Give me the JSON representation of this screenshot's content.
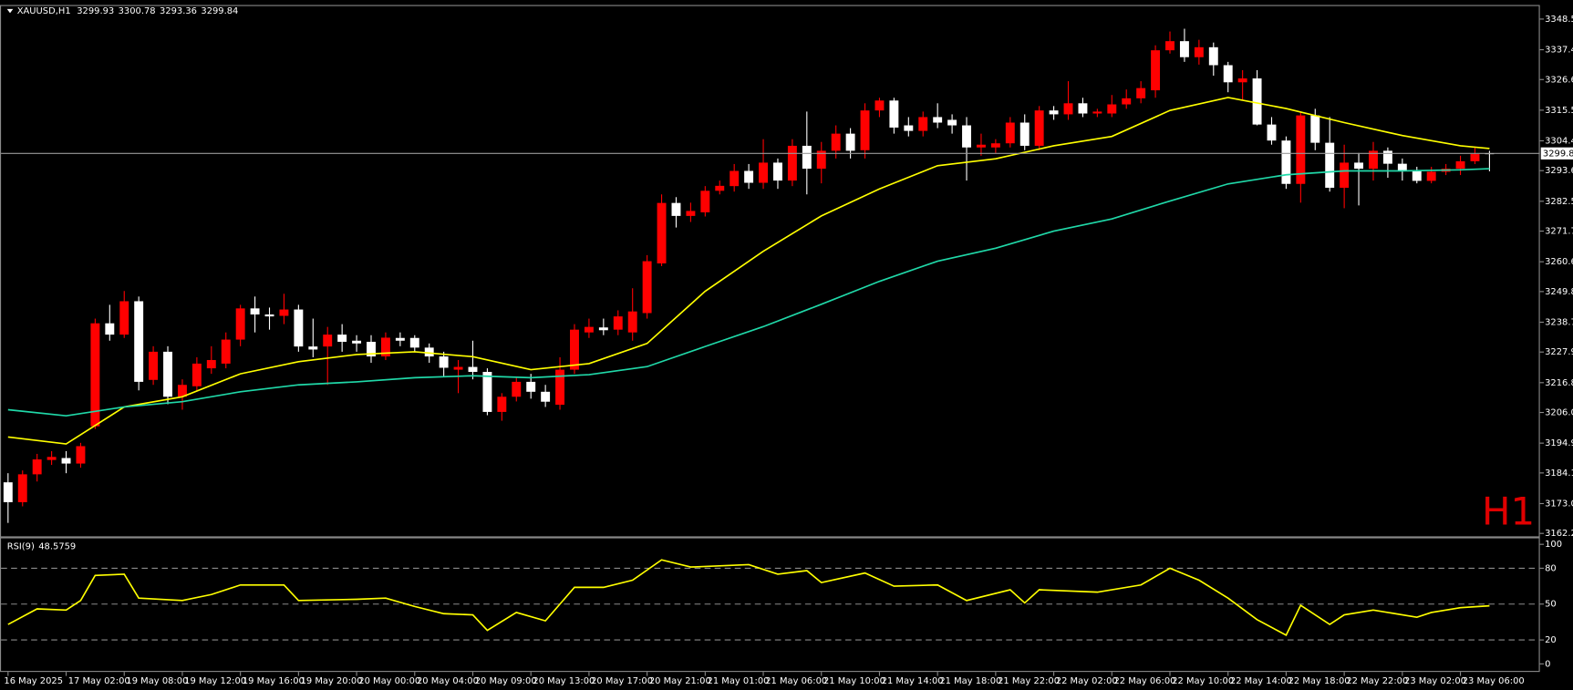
{
  "chart_data": [
    {
      "type": "candlestick",
      "title": "XAUUSD,H1",
      "timeframe_watermark": "H1",
      "up_color": "#ff0000",
      "down_color": "#ffffff",
      "price_line_color": "#9a9a9a",
      "categories": [
        "16 May 2025",
        null,
        null,
        null,
        "17 May 02:00",
        null,
        null,
        null,
        "19 May 08:00",
        null,
        null,
        null,
        "19 May 12:00",
        null,
        null,
        null,
        "19 May 16:00",
        null,
        null,
        null,
        "19 May 20:00",
        null,
        null,
        null,
        "20 May 00:00",
        null,
        null,
        null,
        "20 May 04:00",
        null,
        null,
        null,
        "20 May 09:00",
        null,
        null,
        null,
        "20 May 13:00",
        null,
        null,
        null,
        "20 May 17:00",
        null,
        null,
        null,
        "20 May 21:00",
        null,
        null,
        null,
        "21 May 01:00",
        null,
        null,
        null,
        "21 May 06:00",
        null,
        null,
        null,
        "21 May 10:00",
        null,
        null,
        null,
        "21 May 14:00",
        null,
        null,
        null,
        "21 May 18:00",
        null,
        null,
        null,
        "21 May 22:00",
        null,
        null,
        null,
        "22 May 02:00",
        null,
        null,
        null,
        "22 May 06:00",
        null,
        null,
        null,
        "22 May 10:00",
        null,
        null,
        null,
        "22 May 14:00",
        null,
        null,
        null,
        "22 May 18:00",
        null,
        null,
        null,
        "22 May 22:00",
        null,
        null,
        null,
        "23 May 02:00",
        null,
        null,
        null,
        "23 May 06:00",
        null,
        null
      ],
      "open": [
        3180.7,
        3173.5,
        3183.6,
        3188.8,
        3189.5,
        3187.5,
        3201,
        3238.3,
        3234.2,
        3246.3,
        3217.8,
        3228,
        3211.7,
        3215.5,
        3222,
        3223.7,
        3232.4,
        3243.7,
        3241.5,
        3241,
        3243.3,
        3229.9,
        3229.9,
        3234.2,
        3232,
        3231.6,
        3226.3,
        3233,
        3233,
        3229.5,
        3226.3,
        3221.5,
        3222.5,
        3220.7,
        3206.2,
        3211.7,
        3217.1,
        3213.5,
        3208.8,
        3221.5,
        3235,
        3236.8,
        3236,
        3235,
        3242,
        3260,
        3281.9,
        3277.2,
        3278.5,
        3286.3,
        3288,
        3293.5,
        3289.2,
        3296.5,
        3290,
        3302.6,
        3294.3,
        3300.8,
        3307,
        3301,
        3315.4,
        3319,
        3310,
        3308,
        3313,
        3312,
        3310,
        3302,
        3302,
        3303.5,
        3311,
        3302.6,
        3315.4,
        3314,
        3318,
        3314.3,
        3314.3,
        3317.6,
        3319.8,
        3322.7,
        3337.2,
        3340.5,
        3334.7,
        3338.3,
        3331.8,
        3325.6,
        3327,
        3310.3,
        3304.5,
        3288.8,
        3313.6,
        3303.7,
        3287.4,
        3296.5,
        3294.3,
        3300.8,
        3296.1,
        3293.5,
        3289.9,
        3293.2,
        3294.3,
        3297,
        3299.93
      ],
      "high": [
        3184,
        3185,
        3191,
        3192,
        3192,
        3195,
        3240,
        3245,
        3250,
        3248,
        3230,
        3230,
        3218,
        3226,
        3230,
        3235,
        3245,
        3248,
        3244,
        3249,
        3245,
        3240,
        3237,
        3238,
        3234,
        3234,
        3235,
        3235,
        3234,
        3231,
        3228,
        3225,
        3232,
        3222,
        3213,
        3219,
        3220,
        3216,
        3226,
        3238,
        3240,
        3240,
        3243,
        3251,
        3263,
        3285,
        3284,
        3282,
        3288,
        3290,
        3296,
        3296,
        3305,
        3298,
        3305,
        3315,
        3304,
        3310,
        3309,
        3318,
        3320,
        3320,
        3313,
        3315,
        3318,
        3314,
        3313,
        3307,
        3305,
        3313,
        3314,
        3317,
        3317,
        3326,
        3320,
        3316,
        3321,
        3323,
        3326,
        3339,
        3344,
        3345,
        3341,
        3340,
        3333,
        3330,
        3330,
        3313,
        3306,
        3315,
        3316,
        3313,
        3303,
        3300,
        3304,
        3302,
        3298,
        3295,
        3295,
        3296,
        3299,
        3302,
        3300.78
      ],
      "low": [
        3166,
        3172,
        3181,
        3187,
        3184,
        3186,
        3200,
        3232,
        3233,
        3214,
        3216,
        3209,
        3207,
        3214,
        3220,
        3222,
        3230,
        3235,
        3236,
        3238,
        3228,
        3226,
        3216,
        3228,
        3228,
        3224,
        3225,
        3230,
        3228,
        3224,
        3219,
        3213,
        3218,
        3205,
        3203,
        3210,
        3211,
        3208,
        3207,
        3220,
        3233,
        3234,
        3234,
        3232,
        3240,
        3259,
        3273,
        3275,
        3277,
        3285,
        3286,
        3287,
        3287,
        3287,
        3288,
        3285,
        3289,
        3298,
        3298,
        3298,
        3313,
        3307,
        3306,
        3306,
        3309,
        3307,
        3290,
        3299,
        3300,
        3302,
        3301,
        3301,
        3312,
        3312,
        3313,
        3313,
        3313,
        3316,
        3318,
        3320,
        3336,
        3333,
        3332,
        3328,
        3322,
        3319,
        3310,
        3303,
        3287,
        3282,
        3301,
        3286,
        3280,
        3281,
        3290,
        3291,
        3290,
        3289,
        3289,
        3292,
        3292,
        3296,
        3293.36
      ],
      "close": [
        3173.5,
        3183.6,
        3189,
        3189.9,
        3187.5,
        3193.8,
        3238.3,
        3234.2,
        3246.3,
        3217.1,
        3228,
        3211.7,
        3216,
        3223.7,
        3225,
        3232.4,
        3243.7,
        3241.5,
        3240.8,
        3243.3,
        3229.9,
        3228.8,
        3234.2,
        3231.6,
        3231,
        3226.3,
        3233.1,
        3232,
        3229.5,
        3226.3,
        3222.2,
        3222.5,
        3220.7,
        3206.2,
        3211.7,
        3217.1,
        3213.5,
        3209.9,
        3221.5,
        3236,
        3237,
        3235.8,
        3240.8,
        3242.6,
        3260.8,
        3281.9,
        3277.2,
        3279,
        3286.3,
        3288.1,
        3293.5,
        3289.2,
        3296.5,
        3290,
        3302.6,
        3294.3,
        3300.8,
        3307,
        3300.8,
        3315.4,
        3319,
        3309.2,
        3308,
        3313,
        3311,
        3310,
        3302,
        3303,
        3303.5,
        3311,
        3302.6,
        3315.4,
        3314,
        3318,
        3314.3,
        3315,
        3317.6,
        3319.8,
        3323.5,
        3337.2,
        3340.5,
        3334.7,
        3338.3,
        3331.8,
        3325.6,
        3327,
        3310.3,
        3304.5,
        3288.8,
        3313.6,
        3303.7,
        3287.4,
        3296.5,
        3294.3,
        3300.8,
        3296.1,
        3293.5,
        3289.9,
        3293.2,
        3294.3,
        3297,
        3299.6,
        3299.84
      ],
      "moving_averages": [
        {
          "color": "#ffff00",
          "x": [
            0,
            4,
            8,
            12,
            16,
            20,
            24,
            28,
            32,
            36,
            40,
            44,
            48,
            52,
            56,
            60,
            64,
            68,
            72,
            76,
            80,
            84,
            88,
            92,
            96,
            100,
            102
          ],
          "values": [
            3197.1,
            3194.6,
            3208,
            3211.7,
            3220,
            3224.4,
            3227,
            3228,
            3226.2,
            3221.5,
            3223.7,
            3231,
            3249.9,
            3264.4,
            3277.2,
            3287,
            3295.4,
            3297.9,
            3302.6,
            3306,
            3315.4,
            3320.1,
            3316.1,
            3311,
            3306.3,
            3302.6,
            3301.6
          ]
        },
        {
          "color": "#20d8a8",
          "x": [
            0,
            4,
            8,
            12,
            16,
            20,
            24,
            28,
            32,
            36,
            40,
            44,
            48,
            52,
            56,
            60,
            64,
            68,
            72,
            76,
            80,
            84,
            88,
            92,
            96,
            100,
            102
          ],
          "values": [
            3207,
            3204.8,
            3208,
            3209.9,
            3213.5,
            3216,
            3217.1,
            3218.6,
            3219.3,
            3218.6,
            3219.7,
            3222.6,
            3229.9,
            3237.1,
            3245.2,
            3253.5,
            3260.8,
            3265.5,
            3271.7,
            3276.1,
            3282.6,
            3288.8,
            3292.1,
            3293.5,
            3293.5,
            3293.9,
            3294.3
          ]
        }
      ],
      "ylim": [
        3161.5,
        3352.5
      ],
      "yticks": [
        {
          "value": 3348.5,
          "label": "3348.50"
        },
        {
          "value": 3337.4,
          "label": "3337.40"
        },
        {
          "value": 3326.6,
          "label": "3326.60"
        },
        {
          "value": 3315.5,
          "label": "3315.50"
        },
        {
          "value": 3304.4,
          "label": "3304.40"
        },
        {
          "value": 3293.6,
          "label": "3293.60"
        },
        {
          "value": 3282.5,
          "label": "3282.50"
        },
        {
          "value": 3271.7,
          "label": "3271.70"
        },
        {
          "value": 3260.6,
          "label": "3260.60"
        },
        {
          "value": 3249.8,
          "label": "3249.80"
        },
        {
          "value": 3238.7,
          "label": "3238.70"
        },
        {
          "value": 3227.9,
          "label": "3227.90"
        },
        {
          "value": 3216.8,
          "label": "3216.80"
        },
        {
          "value": 3206,
          "label": "3206.00"
        },
        {
          "value": 3194.9,
          "label": "3194.90"
        },
        {
          "value": 3184.1,
          "label": "3184.10"
        },
        {
          "value": 3173,
          "label": "3173.00"
        },
        {
          "value": 3162.2,
          "label": "3162.20"
        }
      ]
    },
    {
      "type": "line",
      "title": "RSI(9)",
      "color": "#ffff00",
      "level_color": "#8a8a8a",
      "x": [
        0,
        2,
        4,
        5,
        6,
        8,
        9,
        12,
        14,
        16,
        19,
        20,
        24,
        26,
        28,
        30,
        32,
        33,
        35,
        37,
        39,
        41,
        43,
        45,
        47,
        51,
        53,
        55,
        56,
        59,
        61,
        64,
        66,
        69,
        70,
        71,
        75,
        78,
        80,
        82,
        84,
        86,
        88,
        89,
        91,
        92,
        94,
        97,
        98,
        100,
        102
      ],
      "values": [
        33,
        46,
        45,
        53,
        74,
        75,
        55,
        53,
        58,
        66,
        66,
        53,
        54,
        55,
        48,
        42,
        41,
        28,
        43,
        36,
        64,
        64,
        70,
        87,
        81,
        83,
        75,
        78,
        68,
        76,
        65,
        66,
        53,
        62,
        51,
        62,
        60,
        66,
        80,
        70,
        55,
        37,
        24,
        49,
        33,
        41,
        45,
        39,
        43,
        47,
        48.5759
      ],
      "levels": [
        80,
        50,
        20
      ],
      "ylim": [
        -5.9,
        105
      ],
      "yticks": [
        0,
        20,
        50,
        80,
        100
      ]
    }
  ]
}
